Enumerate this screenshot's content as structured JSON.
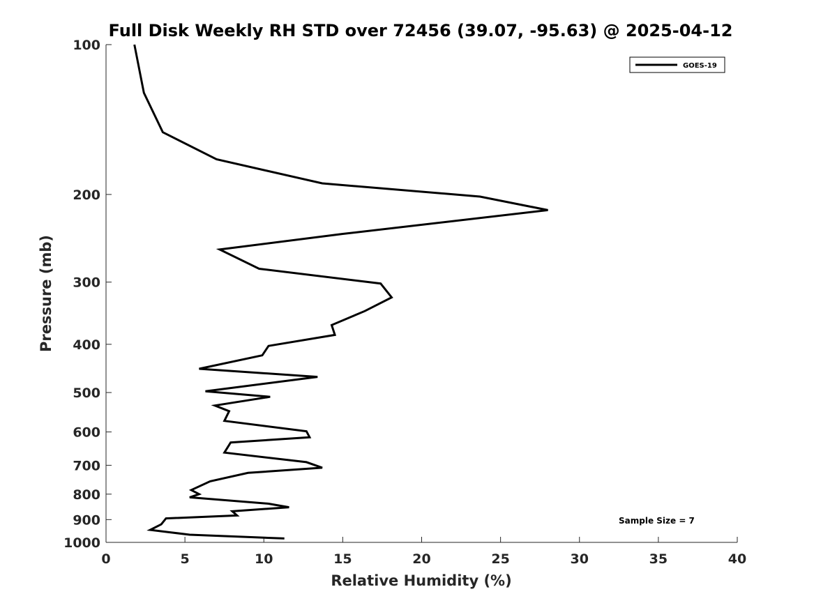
{
  "chart_data": {
    "type": "line",
    "title": "Full Disk Weekly RH STD over 72456 (39.07, -95.63) @ 2025-04-12",
    "xlabel": "Relative Humidity (%)",
    "ylabel": "Pressure (mb)",
    "xlim": [
      0,
      40
    ],
    "ylim": [
      1000,
      100
    ],
    "yscale": "log",
    "grid": false,
    "legend_position": "top-right",
    "x_ticks": [
      {
        "value": 0,
        "label": "0"
      },
      {
        "value": 5,
        "label": "5"
      },
      {
        "value": 10,
        "label": "10"
      },
      {
        "value": 15,
        "label": "15"
      },
      {
        "value": 20,
        "label": "20"
      },
      {
        "value": 25,
        "label": "25"
      },
      {
        "value": 30,
        "label": "30"
      },
      {
        "value": 35,
        "label": "35"
      },
      {
        "value": 40,
        "label": "40"
      }
    ],
    "y_ticks": [
      {
        "value": 100,
        "label": "100"
      },
      {
        "value": 200,
        "label": "200"
      },
      {
        "value": 300,
        "label": "300"
      },
      {
        "value": 400,
        "label": "400"
      },
      {
        "value": 500,
        "label": "500"
      },
      {
        "value": 600,
        "label": "600"
      },
      {
        "value": 700,
        "label": "700"
      },
      {
        "value": 800,
        "label": "800"
      },
      {
        "value": 900,
        "label": "900"
      },
      {
        "value": 1000,
        "label": "1000"
      }
    ],
    "series": [
      {
        "name": "GOES-19",
        "color": "#000000",
        "x": [
          1.8,
          2.4,
          3.6,
          7.0,
          13.7,
          23.7,
          28.0,
          15.0,
          7.2,
          9.7,
          17.4,
          18.1,
          16.4,
          14.3,
          14.5,
          10.3,
          9.9,
          5.9,
          13.4,
          6.3,
          10.4,
          6.9,
          7.8,
          7.5,
          12.7,
          12.9,
          7.9,
          7.5,
          12.7,
          13.7,
          9.0,
          6.6,
          5.4,
          5.9,
          5.3,
          10.3,
          11.6,
          8.0,
          8.3,
          3.8,
          3.5,
          2.8,
          5.3,
          11.3
        ],
        "y": [
          100,
          125,
          150,
          170,
          190,
          202,
          215,
          240,
          258,
          282,
          302,
          322,
          343,
          366,
          383,
          403,
          421,
          448,
          465,
          497,
          510,
          531,
          545,
          570,
          598,
          615,
          630,
          660,
          690,
          708,
          725,
          754,
          785,
          800,
          812,
          836,
          850,
          866,
          883,
          895,
          920,
          944,
          965,
          982
        ]
      }
    ],
    "annotations": [
      {
        "text": "Sample Size = 7",
        "x": 32.5,
        "y": 900
      }
    ]
  }
}
